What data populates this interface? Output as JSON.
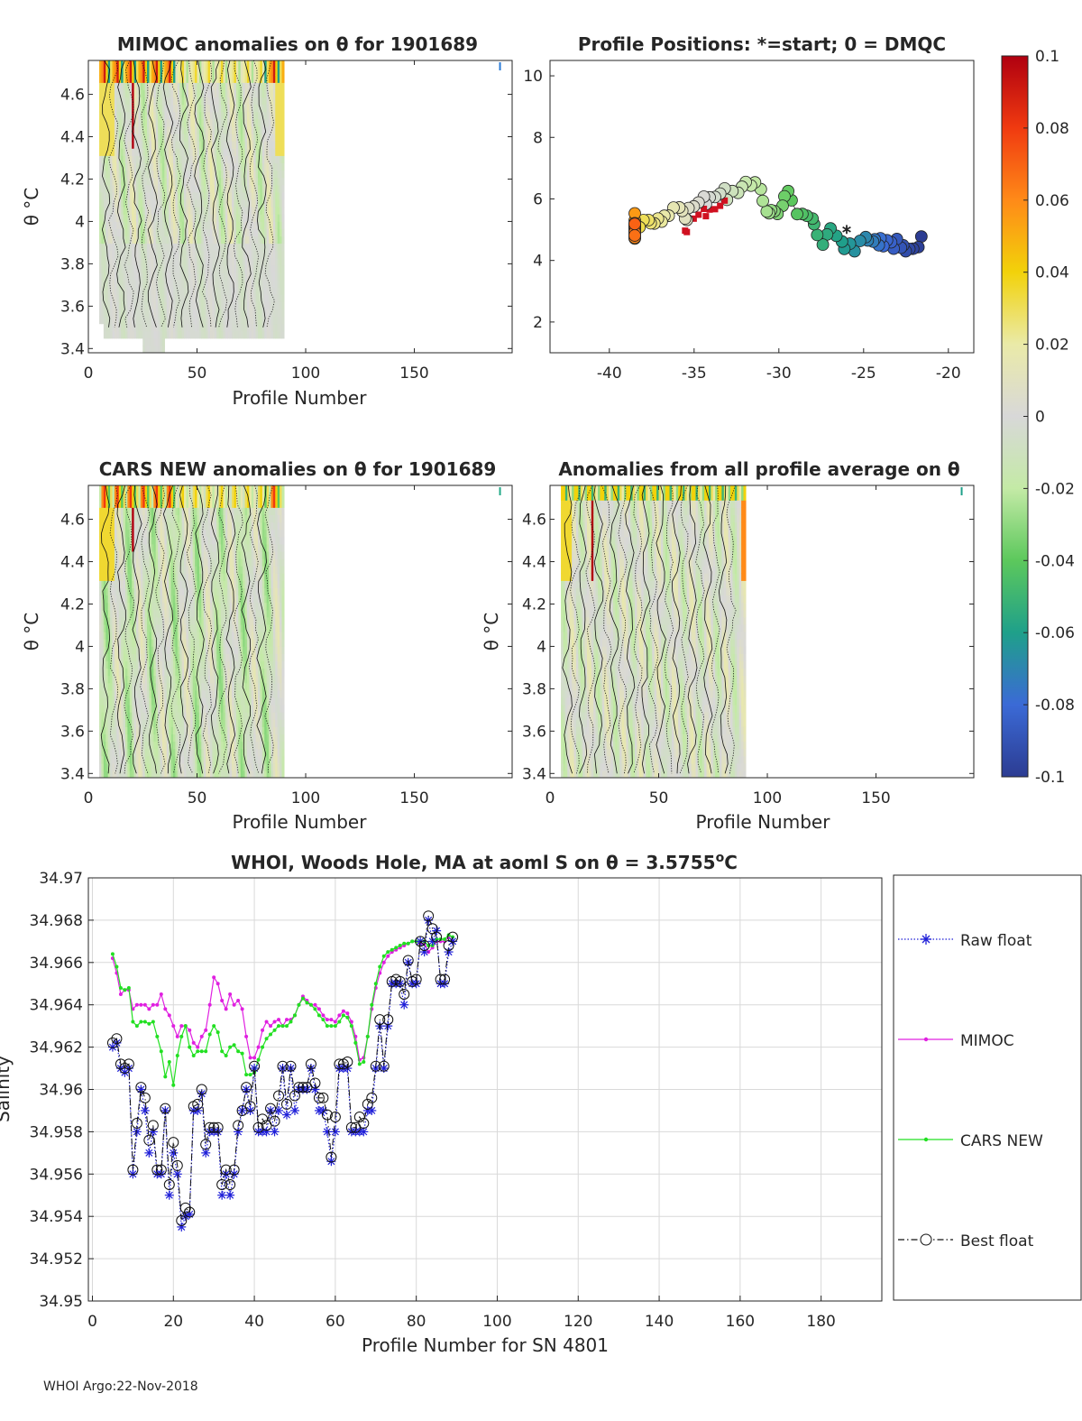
{
  "panels": {
    "mimoc": {
      "title": "MIMOC anomalies on θ  for 1901689",
      "xlabel": "Profile Number",
      "ylabel": "θ °C",
      "xlim": [
        0,
        195
      ],
      "ylim": [
        3.38,
        4.76
      ],
      "xticks": [
        "0",
        "50",
        "100",
        "150"
      ],
      "yticks": [
        "3.4",
        "3.6",
        "3.8",
        "4",
        "4.2",
        "4.4",
        "4.6"
      ]
    },
    "positions": {
      "title": "Profile Positions: *=start; 0 = DMQC",
      "xlim": [
        -43.5,
        -18.5
      ],
      "ylim": [
        1,
        10.5
      ],
      "xticks": [
        "-40",
        "-35",
        "-30",
        "-25",
        "-20"
      ],
      "yticks": [
        "2",
        "4",
        "6",
        "8",
        "10"
      ]
    },
    "cars": {
      "title": "CARS NEW anomalies on θ for 1901689",
      "xlabel": "Profile Number",
      "ylabel": "θ °C",
      "xlim": [
        0,
        195
      ],
      "ylim": [
        3.38,
        4.76
      ],
      "xticks": [
        "0",
        "50",
        "100",
        "150"
      ],
      "yticks": [
        "3.4",
        "3.6",
        "3.8",
        "4",
        "4.2",
        "4.4",
        "4.6"
      ]
    },
    "average": {
      "title": "Anomalies from all profile average on θ",
      "xlabel": "Profile Number",
      "ylabel": "θ °C",
      "xlim": [
        0,
        195
      ],
      "ylim": [
        3.38,
        4.76
      ],
      "xticks": [
        "0",
        "50",
        "100",
        "150"
      ],
      "yticks": [
        "3.4",
        "3.6",
        "3.8",
        "4",
        "4.2",
        "4.4",
        "4.6"
      ]
    }
  },
  "colorbar": {
    "ticks": [
      "0.1",
      "0.08",
      "0.06",
      "0.04",
      "0.02",
      "0",
      "-0.02",
      "-0.04",
      "-0.06",
      "-0.08",
      "-0.1"
    ],
    "colors": [
      "#c00010",
      "#f03a10",
      "#ff8c1a",
      "#f5d30a",
      "#e8e8a0",
      "#d7d7d7",
      "#bfe8a0",
      "#66cc66",
      "#22aa88",
      "#3a6fd8",
      "#2a3aa0"
    ]
  },
  "chart_data": [
    {
      "type": "line",
      "title": "WHOI, Woods Hole, MA at aoml S on θ = 3.5755°C",
      "title_main": "WHOI, Woods Hole, MA at aoml S on θ = 3.5755",
      "title_sup": "o",
      "title_unit": "C",
      "xlabel": "Profile Number for SN 4801",
      "ylabel": "Salinity",
      "xlim": [
        -1,
        195
      ],
      "ylim": [
        34.95,
        34.97
      ],
      "xticks": [
        "0",
        "20",
        "40",
        "60",
        "80",
        "100",
        "120",
        "140",
        "160",
        "180"
      ],
      "yticks": [
        "34.95",
        "34.952",
        "34.954",
        "34.956",
        "34.958",
        "34.96",
        "34.962",
        "34.964",
        "34.966",
        "34.968",
        "34.97"
      ],
      "x": [
        5,
        6,
        7,
        8,
        9,
        10,
        11,
        12,
        13,
        14,
        15,
        16,
        17,
        18,
        19,
        20,
        21,
        22,
        23,
        24,
        25,
        26,
        27,
        28,
        29,
        30,
        31,
        32,
        33,
        34,
        35,
        36,
        37,
        38,
        39,
        40,
        41,
        42,
        43,
        44,
        45,
        46,
        47,
        48,
        49,
        50,
        51,
        52,
        53,
        54,
        55,
        56,
        57,
        58,
        59,
        60,
        61,
        62,
        63,
        64,
        65,
        66,
        67,
        68,
        69,
        70,
        71,
        72,
        73,
        74,
        75,
        76,
        77,
        78,
        79,
        80,
        81,
        82,
        83,
        84,
        85,
        86,
        87,
        88,
        89
      ],
      "series": [
        {
          "name": "Raw float",
          "color": "#1f1fd8",
          "values": [
            34.962,
            34.9622,
            34.961,
            34.9608,
            34.961,
            34.956,
            34.958,
            34.96,
            34.959,
            34.957,
            34.958,
            34.956,
            34.956,
            34.959,
            34.955,
            34.957,
            34.956,
            34.9535,
            34.954,
            34.9541,
            34.959,
            34.959,
            34.9598,
            34.957,
            34.958,
            34.958,
            34.958,
            34.955,
            34.956,
            34.955,
            34.956,
            34.958,
            34.959,
            34.96,
            34.959,
            34.961,
            34.958,
            34.958,
            34.958,
            34.959,
            34.958,
            34.959,
            34.961,
            34.9588,
            34.961,
            34.959,
            34.96,
            34.96,
            34.96,
            34.961,
            34.96,
            34.959,
            34.959,
            34.958,
            34.9566,
            34.958,
            34.961,
            34.961,
            34.961,
            34.958,
            34.958,
            34.958,
            34.958,
            34.959,
            34.959,
            34.961,
            34.963,
            34.961,
            34.963,
            34.965,
            34.965,
            34.965,
            34.964,
            34.966,
            34.965,
            34.965,
            34.967,
            34.9665,
            34.968,
            34.967,
            34.9675,
            34.965,
            34.965,
            34.9665,
            34.967
          ],
          "source_note": "raw"
        },
        {
          "name": "MIMOC",
          "color": "#e020e0",
          "values": [
            34.9662,
            34.9655,
            34.9645,
            34.9647,
            34.9647,
            34.9638,
            34.964,
            34.964,
            34.964,
            34.9638,
            34.964,
            34.964,
            34.9645,
            34.9638,
            34.9635,
            34.963,
            34.9625,
            34.963,
            34.963,
            34.9628,
            34.9622,
            34.962,
            34.9625,
            34.9628,
            34.964,
            34.9653,
            34.965,
            34.9642,
            34.9638,
            34.9645,
            34.964,
            34.9642,
            34.9638,
            34.9625,
            34.9615,
            34.9615,
            34.962,
            34.9628,
            34.9632,
            34.963,
            34.9632,
            34.9633,
            34.963,
            34.9633,
            34.9633,
            34.9635,
            34.964,
            34.9644,
            34.9642,
            34.964,
            34.964,
            34.9638,
            34.9635,
            34.9633,
            34.9633,
            34.9632,
            34.9635,
            34.9637,
            34.9636,
            34.9632,
            34.9625,
            34.9614,
            34.9615,
            34.9625,
            34.9638,
            34.9648,
            34.9655,
            34.966,
            34.9663,
            34.9665,
            34.9666,
            34.9667,
            34.9668,
            34.9669,
            34.967,
            34.967,
            34.9669,
            34.9669,
            34.9665,
            34.9667,
            34.967,
            34.967,
            34.967,
            34.9672,
            34.967
          ]
        },
        {
          "name": "CARS NEW",
          "color": "#22e022",
          "values": [
            34.9664,
            34.9658,
            34.9648,
            34.9647,
            34.9648,
            34.9632,
            34.963,
            34.9632,
            34.9632,
            34.9631,
            34.9632,
            34.9625,
            34.9618,
            34.9606,
            34.9613,
            34.9602,
            34.9616,
            34.9625,
            34.963,
            34.962,
            34.9616,
            34.9618,
            34.9618,
            34.9618,
            34.9626,
            34.963,
            34.9627,
            34.9618,
            34.9616,
            34.962,
            34.9621,
            34.9618,
            34.9617,
            34.9607,
            34.9607,
            34.9608,
            34.9614,
            34.962,
            34.9624,
            34.9626,
            34.9628,
            34.963,
            34.963,
            34.963,
            34.9632,
            34.9635,
            34.964,
            34.9643,
            34.9641,
            34.964,
            34.9638,
            34.9635,
            34.9633,
            34.963,
            34.963,
            34.963,
            34.9632,
            34.9635,
            34.9634,
            34.963,
            34.9622,
            34.9612,
            34.9613,
            34.9625,
            34.964,
            34.965,
            34.9658,
            34.9663,
            34.9665,
            34.9666,
            34.9667,
            34.9668,
            34.9669,
            34.9669,
            34.967,
            34.967,
            34.967,
            34.967,
            34.9668,
            34.9668,
            34.9671,
            34.9671,
            34.9671,
            34.9673,
            34.9672
          ]
        },
        {
          "name": "Best float",
          "color": "#111111",
          "values": [
            34.9622,
            34.9624,
            34.9612,
            34.961,
            34.9612,
            34.9562,
            34.9584,
            34.9601,
            34.9596,
            34.9576,
            34.9583,
            34.9562,
            34.9562,
            34.9591,
            34.9555,
            34.9575,
            34.9564,
            34.9538,
            34.9544,
            34.9542,
            34.9592,
            34.9593,
            34.96,
            34.9574,
            34.9582,
            34.9582,
            34.9582,
            34.9555,
            34.9562,
            34.9555,
            34.9562,
            34.9583,
            34.959,
            34.9601,
            34.9592,
            34.9611,
            34.9582,
            34.9586,
            34.9583,
            34.9591,
            34.9585,
            34.9597,
            34.9611,
            34.9593,
            34.9611,
            34.9597,
            34.9601,
            34.9601,
            34.9601,
            34.9612,
            34.9603,
            34.9596,
            34.9596,
            34.9588,
            34.9568,
            34.9587,
            34.9612,
            34.9612,
            34.9613,
            34.9582,
            34.9582,
            34.9587,
            34.9584,
            34.9593,
            34.9596,
            34.9611,
            34.9633,
            34.9611,
            34.9633,
            34.9651,
            34.9652,
            34.9651,
            34.9645,
            34.9661,
            34.9651,
            34.9652,
            34.967,
            34.9668,
            34.9682,
            34.9676,
            34.9672,
            34.9652,
            34.9652,
            34.9668,
            34.9672
          ]
        }
      ],
      "legend_location": "right"
    }
  ],
  "footer": {
    "text": "WHOI Argo:22-Nov-2018"
  }
}
